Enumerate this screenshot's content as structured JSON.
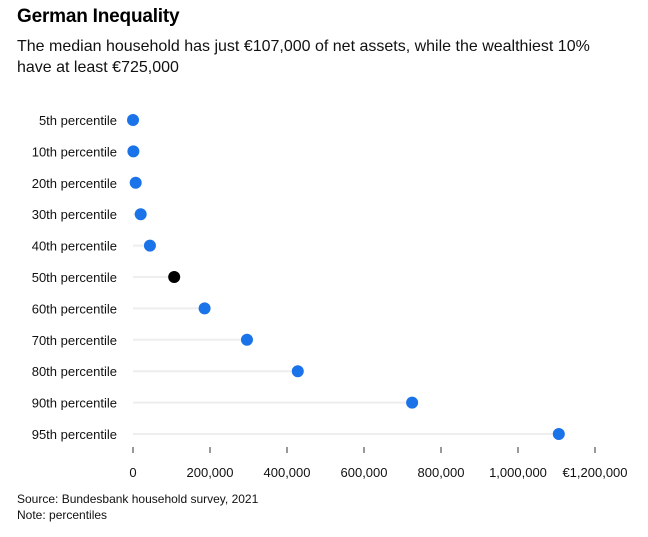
{
  "title": "German Inequality",
  "subtitle": "The median household has just €107,000 of net assets, while the wealthiest 10% have at least €725,000",
  "source": "Source: Bundesbank household survey, 2021",
  "note": "Note: percentiles",
  "colors": {
    "highlight": "#000000",
    "dot": "#1a73e8",
    "track": "#eeeeee",
    "tick": "#333333"
  },
  "chart_data": {
    "type": "scatter",
    "title": "German Inequality",
    "categories": [
      "5th percentile",
      "10th percentile",
      "20th percentile",
      "30th percentile",
      "40th percentile",
      "50th percentile",
      "60th percentile",
      "70th percentile",
      "80th percentile",
      "90th percentile",
      "95th percentile"
    ],
    "values": [
      0,
      1000,
      7000,
      20000,
      44000,
      107000,
      186000,
      296000,
      428000,
      725000,
      1106000
    ],
    "highlight_index": 5,
    "xlim": [
      0,
      1200000
    ],
    "xticks": [
      0,
      200000,
      400000,
      600000,
      800000,
      1000000,
      1200000
    ],
    "xtick_labels": [
      "0",
      "200,000",
      "400,000",
      "600,000",
      "800,000",
      "1,000,000",
      "€1,200,000"
    ],
    "xlabel": "",
    "ylabel": "",
    "grid": false,
    "legend": "none"
  }
}
